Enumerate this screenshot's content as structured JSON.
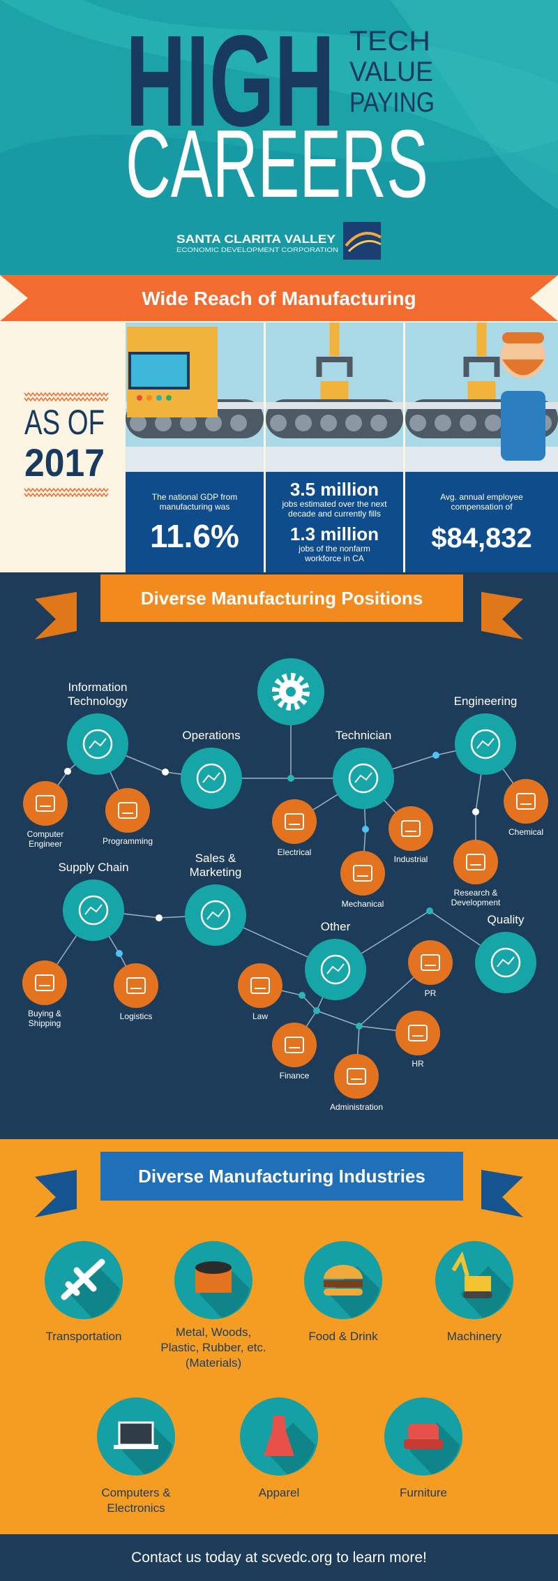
{
  "header": {
    "high": "HIGH",
    "tech": "TECH",
    "value": "VALUE",
    "paying": "PAYING",
    "careers": "CAREERS",
    "org_name": "SANTA CLARITA VALLEY",
    "org_sub": "ECONOMIC DEVELOPMENT CORPORATION"
  },
  "reach": {
    "title": "Wide Reach of Manufacturing",
    "as_of": "AS OF",
    "year": "2017",
    "stats": [
      {
        "lines": [
          "The national GDP from",
          "manufacturing was"
        ],
        "value": "11.6%"
      },
      {
        "value": "3.5 million",
        "lines": [
          "jobs estimated over the next",
          "decade and currently fills"
        ],
        "value2": "1.3 million",
        "lines2": [
          "jobs of the nonfarm",
          "workforce in CA"
        ]
      },
      {
        "lines": [
          "Avg. annual employee",
          "compensation of"
        ],
        "value": "$84,832"
      }
    ]
  },
  "positions": {
    "title": "Diverse Manufacturing Positions",
    "groups": [
      {
        "label": [
          "Information",
          "Technology"
        ]
      },
      {
        "label": [
          "Operations"
        ]
      },
      {
        "label": [
          "Technician"
        ]
      },
      {
        "label": [
          "Engineering"
        ]
      },
      {
        "label": [
          "Supply Chain"
        ]
      },
      {
        "label": [
          "Sales &",
          "Marketing"
        ]
      },
      {
        "label": [
          "Other"
        ]
      },
      {
        "label": [
          "Quality"
        ]
      }
    ],
    "roles": [
      {
        "label": [
          "Computer",
          "Engineer"
        ]
      },
      {
        "label": [
          "Programming"
        ]
      },
      {
        "label": [
          "Electrical"
        ]
      },
      {
        "label": [
          "Mechanical"
        ]
      },
      {
        "label": [
          "Industrial"
        ]
      },
      {
        "label": [
          "Chemical"
        ]
      },
      {
        "label": [
          "Research &",
          "Development"
        ]
      },
      {
        "label": [
          "Buying &",
          "Shipping"
        ]
      },
      {
        "label": [
          "Logistics"
        ]
      },
      {
        "label": [
          "Law"
        ]
      },
      {
        "label": [
          "Finance"
        ]
      },
      {
        "label": [
          "Administration"
        ]
      },
      {
        "label": [
          "HR"
        ]
      },
      {
        "label": [
          "PR"
        ]
      }
    ]
  },
  "industries": {
    "title": "Diverse Manufacturing Industries",
    "items": [
      {
        "label": [
          "Transportation"
        ]
      },
      {
        "label": [
          "Metal, Woods,",
          "Plastic, Rubber, etc.",
          "(Materials)"
        ]
      },
      {
        "label": [
          "Food & Drink"
        ]
      },
      {
        "label": [
          "Machinery"
        ]
      },
      {
        "label": [
          "Computers &",
          "Electronics"
        ]
      },
      {
        "label": [
          "Apparel"
        ]
      },
      {
        "label": [
          "Furniture"
        ]
      }
    ]
  },
  "footer": {
    "text": "Contact us today at scvedc.org to learn more!"
  }
}
